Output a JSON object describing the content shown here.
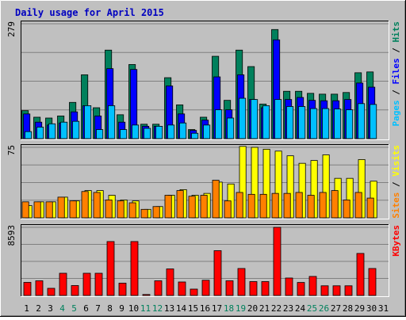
{
  "colors": {
    "frame_bg": "#c0c0c0",
    "panel_bg": "#c0c0c0",
    "title": "#0000c0",
    "hits": "#00805c",
    "files": "#0000ff",
    "pages": "#00c0ff",
    "visits": "#ffff00",
    "sites": "#ff8000",
    "kbytes": "#ff0000",
    "weekend_day": "#00805c",
    "weekday": "#000000",
    "grid": "#808080"
  },
  "chart_data": [
    {
      "type": "bar",
      "title": "Daily usage for April 2015",
      "ylabel_segments": [
        {
          "text": "Pages",
          "color": "#00c0ff"
        },
        {
          "text": " / ",
          "color": "#000000"
        },
        {
          "text": "Files",
          "color": "#0000ff"
        },
        {
          "text": " / ",
          "color": "#000000"
        },
        {
          "text": "Hits",
          "color": "#00805c"
        }
      ],
      "ymax_label": "279",
      "ylim": [
        0,
        279
      ],
      "grid": true,
      "categories": [
        "1",
        "2",
        "3",
        "4",
        "5",
        "6",
        "7",
        "8",
        "9",
        "10",
        "11",
        "12",
        "13",
        "14",
        "15",
        "16",
        "17",
        "18",
        "19",
        "20",
        "21",
        "22",
        "23",
        "24",
        "25",
        "26",
        "27",
        "28",
        "29",
        "30",
        "31"
      ],
      "series": [
        {
          "name": "Hits",
          "color": "#00805c",
          "values": [
            68,
            52,
            50,
            55,
            88,
            155,
            75,
            215,
            58,
            180,
            35,
            35,
            148,
            82,
            22,
            52,
            200,
            93,
            215,
            175,
            84,
            265,
            115,
            115,
            110,
            108,
            108,
            112,
            160,
            162,
            0
          ]
        },
        {
          "name": "Files",
          "color": "#0000ff",
          "values": [
            60,
            40,
            33,
            38,
            65,
            80,
            55,
            170,
            40,
            168,
            30,
            30,
            128,
            60,
            20,
            45,
            150,
            70,
            155,
            95,
            75,
            240,
            95,
            100,
            93,
            92,
            92,
            95,
            135,
            125,
            0
          ]
        },
        {
          "name": "Pages",
          "color": "#00c0ff",
          "values": [
            17,
            28,
            36,
            40,
            42,
            80,
            22,
            80,
            22,
            33,
            25,
            30,
            33,
            38,
            13,
            33,
            70,
            50,
            98,
            95,
            80,
            95,
            78,
            78,
            73,
            73,
            72,
            70,
            85,
            83,
            0
          ]
        }
      ]
    },
    {
      "type": "bar",
      "ylabel_segments": [
        {
          "text": "Sites",
          "color": "#ff8000"
        },
        {
          "text": " / ",
          "color": "#000000"
        },
        {
          "text": "Visits",
          "color": "#ffff00"
        }
      ],
      "ymax_label": "75",
      "ylim": [
        0,
        75
      ],
      "grid": true,
      "categories": [
        "1",
        "2",
        "3",
        "4",
        "5",
        "6",
        "7",
        "8",
        "9",
        "10",
        "11",
        "12",
        "13",
        "14",
        "15",
        "16",
        "17",
        "18",
        "19",
        "20",
        "21",
        "22",
        "23",
        "24",
        "25",
        "26",
        "27",
        "28",
        "29",
        "30",
        "31"
      ],
      "series": [
        {
          "name": "Visits",
          "color": "#ffff00",
          "values": [
            13,
            17,
            17,
            22,
            18,
            29,
            29,
            24,
            19,
            18,
            9,
            12,
            24,
            30,
            24,
            26,
            38,
            36,
            76,
            75,
            73,
            71,
            66,
            58,
            61,
            67,
            42,
            42,
            62,
            39,
            0
          ]
        },
        {
          "name": "Sites",
          "color": "#ff8000",
          "values": [
            17,
            17,
            17,
            22,
            18,
            28,
            27,
            19,
            18,
            16,
            9,
            12,
            24,
            29,
            23,
            24,
            40,
            18,
            27,
            25,
            25,
            26,
            26,
            27,
            24,
            27,
            29,
            19,
            27,
            21,
            0
          ]
        }
      ]
    },
    {
      "type": "bar",
      "ylabel_segments": [
        {
          "text": "KBytes",
          "color": "#ff0000"
        }
      ],
      "ymax_label": "8593",
      "ylim": [
        0,
        8593
      ],
      "grid": true,
      "categories": [
        "1",
        "2",
        "3",
        "4",
        "5",
        "6",
        "7",
        "8",
        "9",
        "10",
        "11",
        "12",
        "13",
        "14",
        "15",
        "16",
        "17",
        "18",
        "19",
        "20",
        "21",
        "22",
        "23",
        "24",
        "25",
        "26",
        "27",
        "28",
        "29",
        "30",
        "31"
      ],
      "series": [
        {
          "name": "KBytes",
          "color": "#ff0000",
          "values": [
            1650,
            1850,
            900,
            2800,
            1250,
            2800,
            2800,
            6800,
            1550,
            6800,
            120,
            1850,
            3350,
            1700,
            800,
            1920,
            5650,
            1850,
            3400,
            1750,
            1750,
            8593,
            2200,
            1640,
            2400,
            1220,
            1220,
            1220,
            5300,
            3400,
            0
          ]
        }
      ]
    }
  ],
  "x_labels": [
    {
      "text": "1",
      "weekend": false
    },
    {
      "text": "2",
      "weekend": false
    },
    {
      "text": "3",
      "weekend": false
    },
    {
      "text": "4",
      "weekend": true
    },
    {
      "text": "5",
      "weekend": true
    },
    {
      "text": "6",
      "weekend": false
    },
    {
      "text": "7",
      "weekend": false
    },
    {
      "text": "8",
      "weekend": false
    },
    {
      "text": "9",
      "weekend": false
    },
    {
      "text": "10",
      "weekend": false
    },
    {
      "text": "11",
      "weekend": true
    },
    {
      "text": "12",
      "weekend": true
    },
    {
      "text": "13",
      "weekend": false
    },
    {
      "text": "14",
      "weekend": false
    },
    {
      "text": "15",
      "weekend": false
    },
    {
      "text": "16",
      "weekend": false
    },
    {
      "text": "17",
      "weekend": false
    },
    {
      "text": "18",
      "weekend": true
    },
    {
      "text": "19",
      "weekend": true
    },
    {
      "text": "20",
      "weekend": false
    },
    {
      "text": "21",
      "weekend": false
    },
    {
      "text": "22",
      "weekend": false
    },
    {
      "text": "23",
      "weekend": false
    },
    {
      "text": "24",
      "weekend": false
    },
    {
      "text": "25",
      "weekend": true
    },
    {
      "text": "26",
      "weekend": true
    },
    {
      "text": "27",
      "weekend": false
    },
    {
      "text": "28",
      "weekend": false
    },
    {
      "text": "29",
      "weekend": false
    },
    {
      "text": "30",
      "weekend": false
    },
    {
      "text": "31",
      "weekend": false
    }
  ]
}
